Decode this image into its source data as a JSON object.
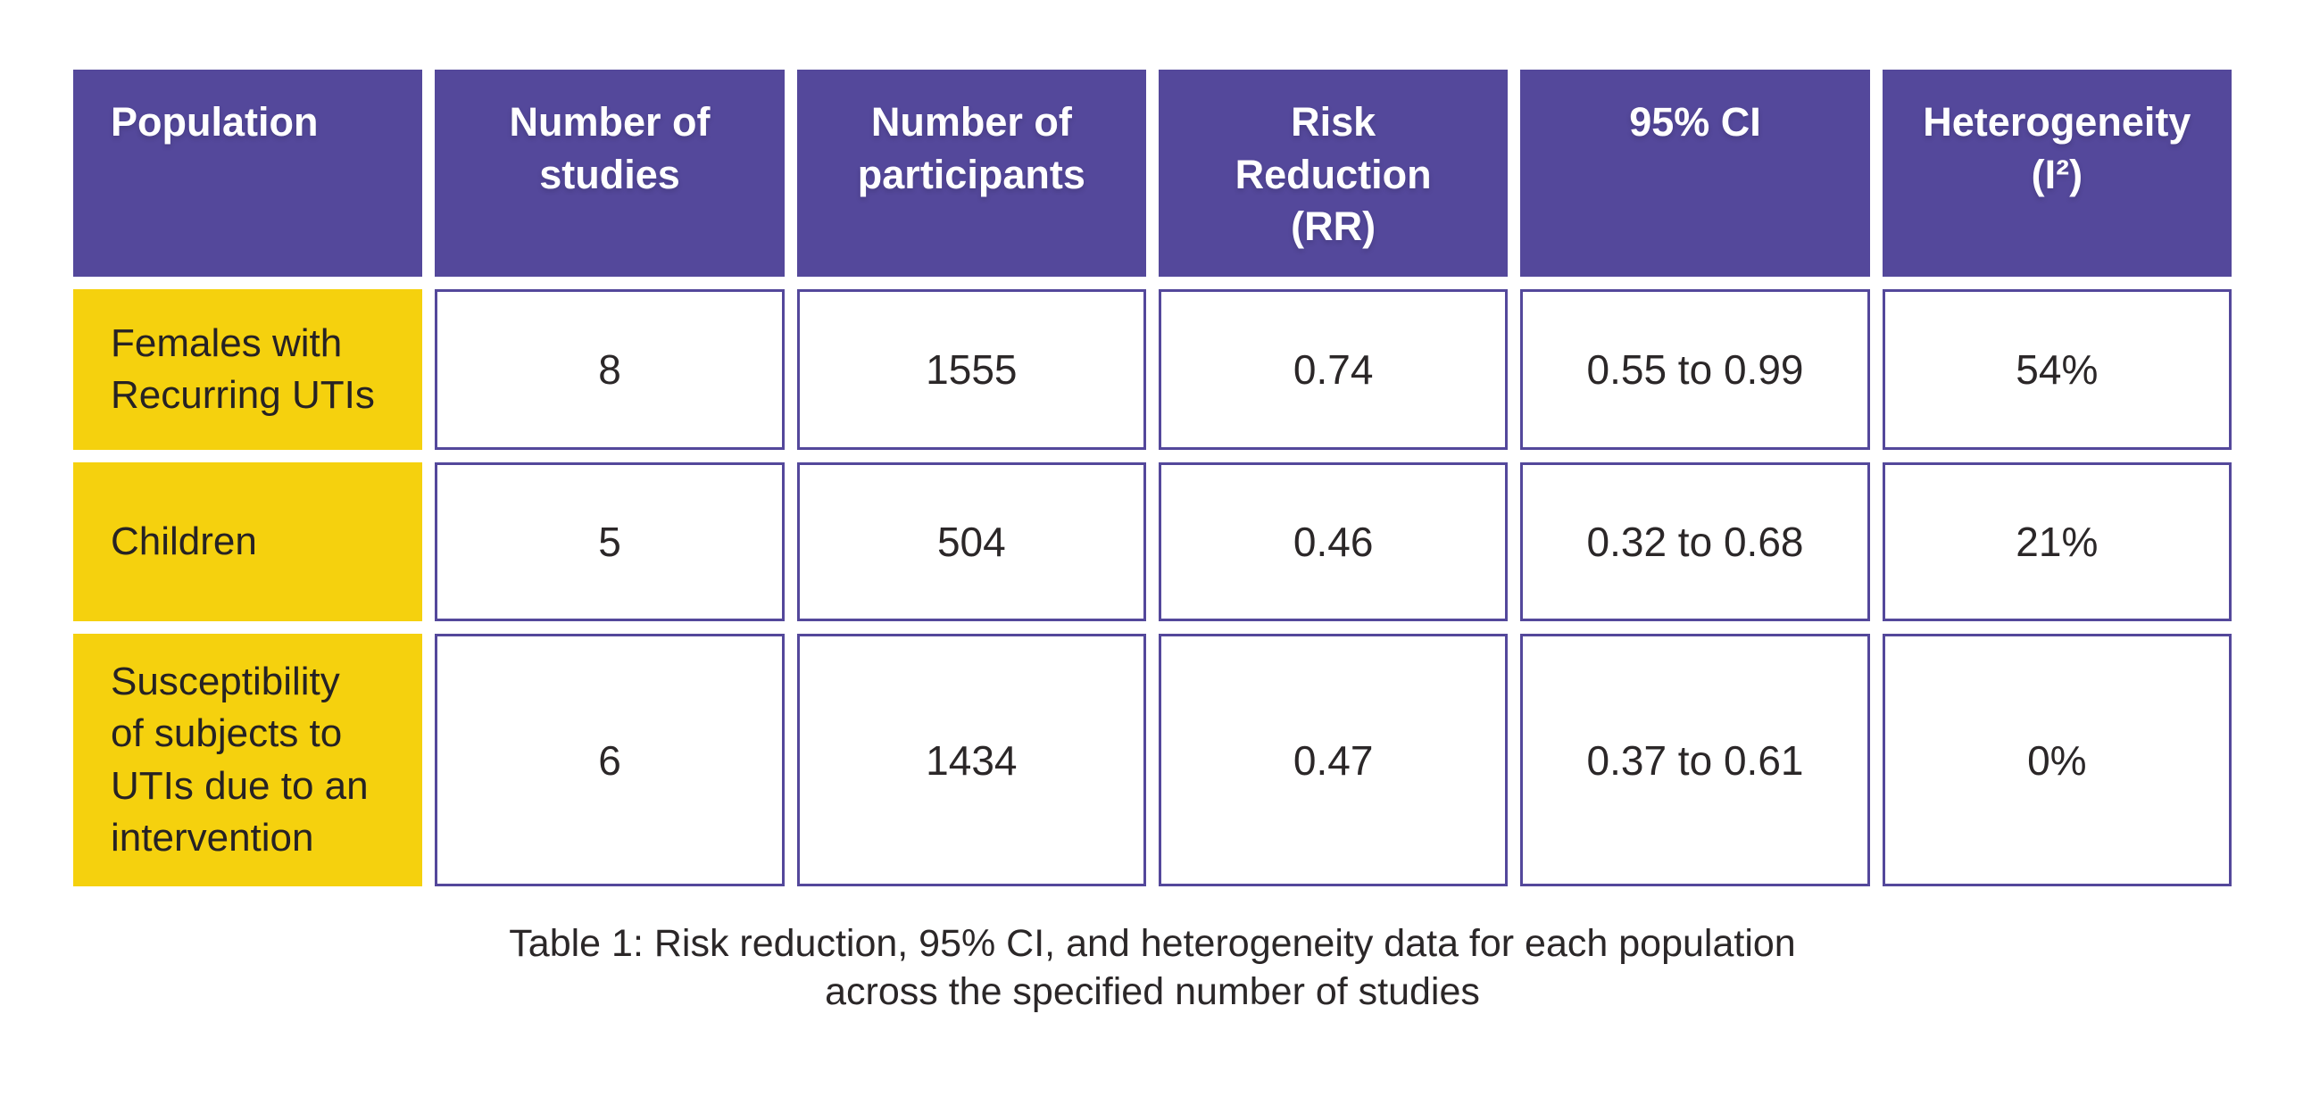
{
  "chart_data": {
    "type": "table",
    "title": "Table 1: Risk reduction, 95% CI, and heterogeneity data for each population across the specified number of studies",
    "columns": [
      "Population",
      "Number of studies",
      "Number of participants",
      "Risk Reduction (RR)",
      "95% CI",
      "Heterogeneity (I²)"
    ],
    "rows": [
      [
        "Females with Recurring UTIs",
        8,
        1555,
        0.74,
        "0.55 to 0.99",
        "54%"
      ],
      [
        "Children",
        5,
        504,
        0.46,
        "0.32 to 0.68",
        "21%"
      ],
      [
        "Susceptibility of subjects to UTIs due to an intervention",
        6,
        1434,
        0.47,
        "0.37 to 0.61",
        "0%"
      ]
    ]
  },
  "display": {
    "headers": [
      "Population",
      "Number of\nstudies",
      "Number of\nparticipants",
      "Risk\nReduction\n(RR)",
      "95% CI",
      "Heterogeneity\n(I²)"
    ],
    "rows": [
      {
        "population": "Females with\nRecurring UTIs",
        "studies": "8",
        "participants": "1555",
        "rr": "0.74",
        "ci": "0.55 to 0.99",
        "het": "54%"
      },
      {
        "population": "Children",
        "studies": "5",
        "participants": "504",
        "rr": "0.46",
        "ci": "0.32 to 0.68",
        "het": "21%"
      },
      {
        "population": "Susceptibility\nof subjects to\nUTIs due to an\nintervention",
        "studies": "6",
        "participants": "1434",
        "rr": "0.47",
        "ci": "0.37 to 0.61",
        "het": "0%"
      }
    ],
    "caption": "Table 1: Risk reduction, 95% CI, and heterogeneity data for each population\nacross the specified number of studies"
  },
  "colors": {
    "header_bg": "#54489B",
    "row_label_bg": "#F5D10E",
    "cell_border": "#54489B",
    "header_text": "#FFFFFF",
    "body_text": "#2B2728"
  }
}
